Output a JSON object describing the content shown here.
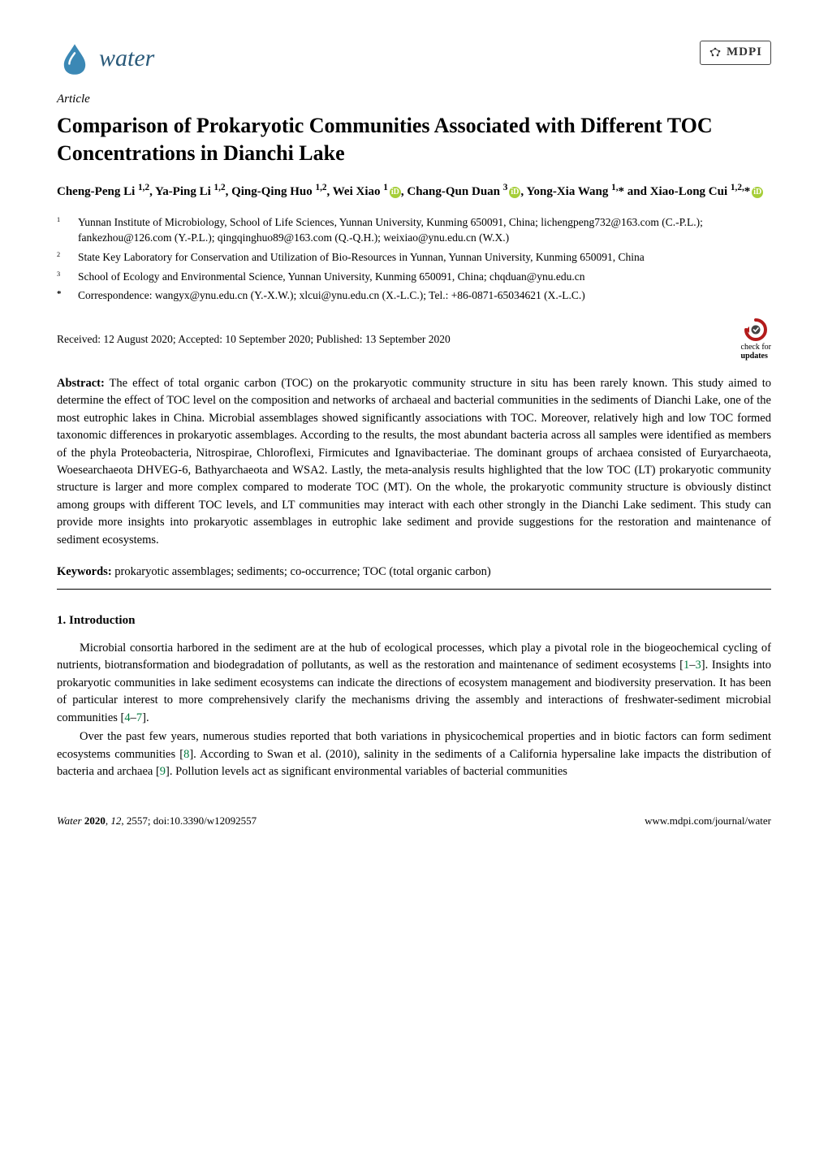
{
  "journal": {
    "name": "water",
    "logo_color": "#2a5a7a",
    "drop_color": "#3b88b5"
  },
  "publisher": {
    "name": "MDPI"
  },
  "article_type": "Article",
  "title": "Comparison of Prokaryotic Communities Associated with Different TOC Concentrations in Dianchi Lake",
  "authors_html": "Cheng-Peng Li <sup>1,2</sup>, Ya-Ping Li <sup>1,2</sup>, Qing-Qing Huo <sup>1,2</sup>, Wei Xiao <sup>1</sup><span class='orcid' data-name='orcid-icon' data-interactable='false'>iD</span>, Chang-Qun Duan <sup>3</sup><span class='orcid' data-name='orcid-icon' data-interactable='false'>iD</span>, Yong-Xia Wang <sup>1,</sup>* and Xiao-Long Cui <sup>1,2,</sup>*<span class='orcid' data-name='orcid-icon' data-interactable='false'>iD</span>",
  "affiliations": [
    {
      "num": "1",
      "text": "Yunnan Institute of Microbiology, School of Life Sciences, Yunnan University, Kunming 650091, China; lichengpeng732@163.com (C.-P.L.); fankezhou@126.com (Y.-P.L.); qingqinghuo89@163.com (Q.-Q.H.); weixiao@ynu.edu.cn (W.X.)"
    },
    {
      "num": "2",
      "text": "State Key Laboratory for Conservation and Utilization of Bio-Resources in Yunnan, Yunnan University, Kunming 650091, China"
    },
    {
      "num": "3",
      "text": "School of Ecology and Environmental Science, Yunnan University, Kunming 650091, China; chqduan@ynu.edu.cn"
    },
    {
      "num": "*",
      "text": "Correspondence: wangyx@ynu.edu.cn (Y.-X.W.); xlcui@ynu.edu.cn (X.-L.C.); Tel.: +86-0871-65034621 (X.-L.C.)"
    }
  ],
  "dates": "Received: 12 August 2020; Accepted: 10 September 2020; Published: 13 September 2020",
  "check_updates": {
    "line1": "check for",
    "line2": "updates"
  },
  "abstract_label": "Abstract:",
  "abstract_text": " The effect of total organic carbon (TOC) on the prokaryotic community structure in situ has been rarely known. This study aimed to determine the effect of TOC level on the composition and networks of archaeal and bacterial communities in the sediments of Dianchi Lake, one of the most eutrophic lakes in China. Microbial assemblages showed significantly associations with TOC. Moreover, relatively high and low TOC formed taxonomic differences in prokaryotic assemblages. According to the results, the most abundant bacteria across all samples were identified as members of the phyla Proteobacteria, Nitrospirae, Chloroflexi, Firmicutes and Ignavibacteriae. The dominant groups of archaea consisted of Euryarchaeota, Woesearchaeota DHVEG-6, Bathyarchaeota and WSA2. Lastly, the meta-analysis results highlighted that the low TOC (LT) prokaryotic community structure is larger and more complex compared to moderate TOC (MT). On the whole, the prokaryotic community structure is obviously distinct among groups with different TOC levels, and LT communities may interact with each other strongly in the Dianchi Lake sediment. This study can provide more insights into prokaryotic assemblages in eutrophic lake sediment and provide suggestions for the restoration and maintenance of sediment ecosystems.",
  "keywords_label": "Keywords:",
  "keywords_text": " prokaryotic assemblages; sediments; co-occurrence; TOC (total organic carbon)",
  "section1_heading": "1. Introduction",
  "para1_html": "Microbial consortia harbored in the sediment are at the hub of ecological processes, which play a pivotal role in the biogeochemical cycling of nutrients, biotransformation and biodegradation of pollutants, as well as the restoration and maintenance of sediment ecosystems [<span class='ref-link'>1</span>–<span class='ref-link'>3</span>]. Insights into prokaryotic communities in lake sediment ecosystems can indicate the directions of ecosystem management and biodiversity preservation. It has been of particular interest to more comprehensively clarify the mechanisms driving the assembly and interactions of freshwater-sediment microbial communities [<span class='ref-link'>4</span>–<span class='ref-link'>7</span>].",
  "para2_html": "Over the past few years, numerous studies reported that both variations in physicochemical properties and in biotic factors can form sediment ecosystems communities [<span class='ref-link'>8</span>]. According to Swan et al. (2010), salinity in the sediments of a California hypersaline lake impacts the distribution of bacteria and archaea [<span class='ref-link'>9</span>]. Pollution levels act as significant environmental variables of bacterial communities",
  "footer": {
    "left_html": "<i>Water</i> <b>2020</b>, <i>12</i>, 2557; doi:10.3390/w12092557",
    "right": "www.mdpi.com/journal/water"
  },
  "colors": {
    "ref_link": "#007a3d",
    "orcid": "#a6ce39"
  }
}
